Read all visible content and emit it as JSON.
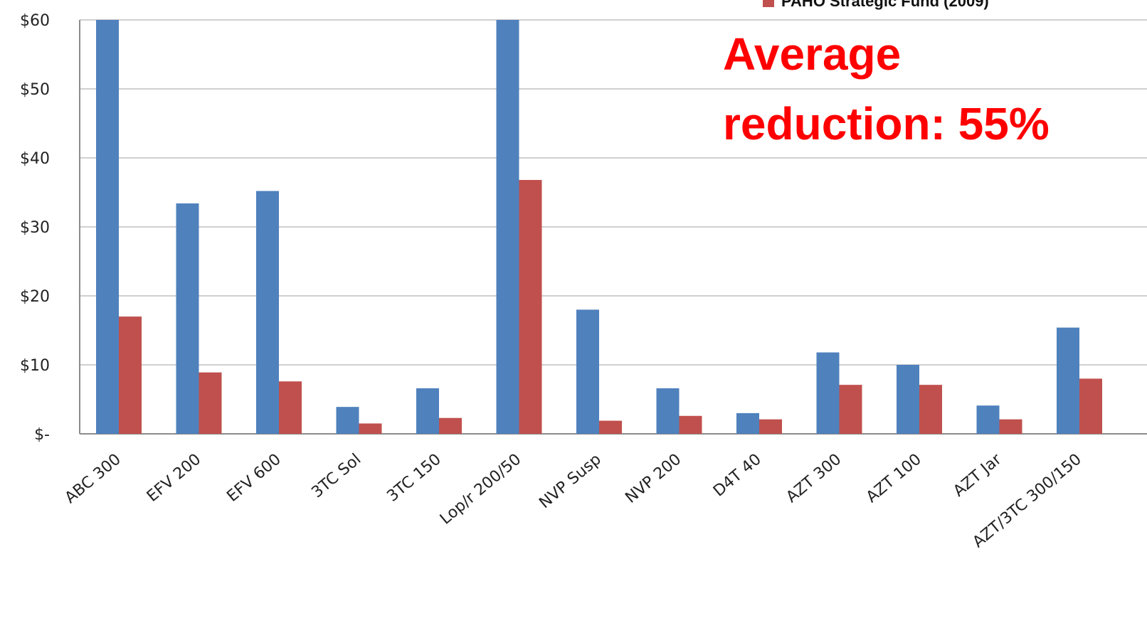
{
  "chart_data": {
    "type": "bar",
    "categories": [
      "ABC 300",
      "EFV 200",
      "EFV 600",
      "3TC Sol",
      "3TC 150",
      "Lop/r 200/50",
      "NVP Susp",
      "NVP 200",
      "D4T 40",
      "AZT 300",
      "AZT 100",
      "AZT Jar",
      "AZT/3TC 300/150"
    ],
    "series": [
      {
        "name": "",
        "color": "#4f81bd",
        "values": [
          60,
          33.4,
          35.2,
          3.9,
          6.6,
          60,
          18.0,
          6.6,
          3.0,
          11.8,
          10.0,
          4.1,
          15.4
        ]
      },
      {
        "name": "PAHO Strategic Fund (2009)",
        "color": "#c0504d",
        "values": [
          17.0,
          8.9,
          7.6,
          1.5,
          2.3,
          36.8,
          1.9,
          2.6,
          2.1,
          7.1,
          7.1,
          2.1,
          8.0
        ]
      }
    ],
    "ylim": [
      0,
      60
    ],
    "yticks": [
      0,
      10,
      20,
      30,
      40,
      50,
      60
    ],
    "ytick_labels": [
      "$-",
      "$10",
      "$20",
      "$30",
      "$40",
      "$50",
      "$60"
    ],
    "grid": true,
    "legend_position": "top-right",
    "legend_entries": [
      "PAHO Strategic Fund (2009)"
    ],
    "annotation": [
      "Average",
      "reduction: 55%"
    ],
    "annotation_color": "#ff0000"
  }
}
